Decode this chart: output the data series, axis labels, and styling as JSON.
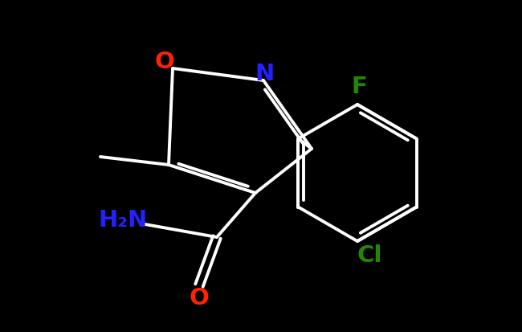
{
  "background_color": "#000000",
  "bond_color": "#ffffff",
  "bond_width": 2.8,
  "label_O_iso": {
    "text": "O",
    "color": "#ff2200",
    "fontsize": 21
  },
  "label_N_iso": {
    "text": "N",
    "color": "#2222ff",
    "fontsize": 21
  },
  "label_F": {
    "text": "F",
    "color": "#228800",
    "fontsize": 21
  },
  "label_Cl": {
    "text": "Cl",
    "color": "#228800",
    "fontsize": 21
  },
  "label_O_amide": {
    "text": "O",
    "color": "#ff2200",
    "fontsize": 21
  },
  "label_NH2": {
    "text": "H₂N",
    "color": "#2222ff",
    "fontsize": 21
  }
}
